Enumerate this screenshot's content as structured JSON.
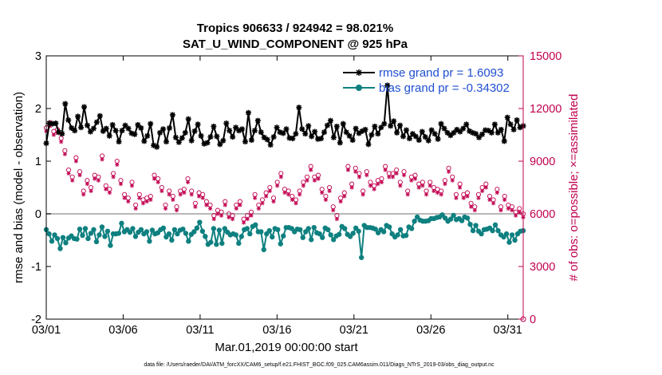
{
  "chart_data": {
    "type": "line",
    "title_line1": "Tropics 906633 / 924942 = 98.021%",
    "title_line2": "SAT_U_WIND_COMPONENT @ 925 hPa",
    "xlabel": "Mar.01,2019 00:00:00 start",
    "ylabel_left": "rmse and bias (model - observation)",
    "ylabel_right": "# of obs: o=possible; ×=assimilated",
    "x_range_days": [
      1,
      32
    ],
    "ylim_left": [
      -2,
      3
    ],
    "ylim_right": [
      0,
      15000
    ],
    "x_ticks": [
      {
        "day": 1,
        "label": "03/01"
      },
      {
        "day": 6,
        "label": "03/06"
      },
      {
        "day": 11,
        "label": "03/11"
      },
      {
        "day": 16,
        "label": "03/16"
      },
      {
        "day": 21,
        "label": "03/21"
      },
      {
        "day": 26,
        "label": "03/26"
      },
      {
        "day": 31,
        "label": "03/31"
      }
    ],
    "y_ticks_left": [
      "3",
      "2",
      "1",
      "0",
      "-1",
      "-2"
    ],
    "y_ticks_right": [
      "15000",
      "12000",
      "9000",
      "6000",
      "3000",
      "0"
    ],
    "zero_line": 0,
    "time_step_days": 0.25,
    "series": [
      {
        "name": "rmse",
        "legend": "rmse grand pr = 1.6093",
        "color": "#000000",
        "marker": "asterisk",
        "values": [
          1.34,
          1.72,
          1.71,
          1.72,
          1.55,
          1.52,
          2.09,
          1.78,
          1.63,
          1.58,
          1.85,
          1.64,
          2.03,
          1.68,
          1.56,
          1.62,
          1.74,
          1.86,
          1.57,
          1.62,
          1.48,
          1.69,
          1.58,
          1.37,
          1.58,
          1.68,
          1.62,
          1.53,
          1.51,
          1.69,
          1.63,
          1.38,
          1.48,
          1.71,
          1.3,
          1.27,
          1.54,
          1.61,
          1.37,
          1.63,
          1.88,
          1.45,
          1.36,
          1.44,
          1.54,
          1.8,
          1.39,
          1.57,
          1.7,
          1.48,
          1.33,
          1.35,
          1.46,
          1.66,
          1.47,
          1.32,
          1.39,
          1.72,
          1.58,
          1.46,
          1.64,
          1.58,
          1.61,
          1.37,
          1.92,
          1.4,
          1.58,
          1.77,
          1.55,
          1.45,
          1.41,
          1.31,
          1.46,
          1.64,
          1.55,
          1.53,
          1.61,
          1.44,
          1.43,
          1.52,
          2.02,
          1.61,
          1.52,
          1.67,
          1.47,
          1.56,
          1.42,
          1.43,
          1.55,
          1.68,
          1.77,
          1.45,
          1.66,
          1.35,
          1.71,
          1.55,
          1.48,
          1.4,
          1.62,
          1.53,
          1.57,
          1.6,
          1.32,
          1.5,
          1.66,
          1.52,
          1.64,
          1.71,
          2.44,
          1.67,
          1.76,
          1.54,
          1.68,
          1.47,
          1.59,
          1.43,
          1.52,
          1.47,
          1.4,
          1.56,
          1.46,
          1.39,
          1.59,
          1.52,
          1.42,
          1.71,
          1.62,
          1.54,
          1.49,
          1.54,
          1.6,
          1.56,
          1.62,
          1.7,
          1.57,
          1.54,
          1.52,
          1.45,
          1.51,
          1.59,
          1.58,
          1.54,
          1.7,
          1.54,
          1.6,
          1.38,
          1.83,
          1.7,
          1.6,
          1.78,
          1.64,
          1.67
        ]
      },
      {
        "name": "bias",
        "legend": "bias grand pr = -0.34302",
        "color": "#0f8080",
        "marker": "dot",
        "values": [
          -0.3,
          -0.38,
          -0.52,
          -0.4,
          -0.47,
          -0.66,
          -0.45,
          -0.55,
          -0.46,
          -0.42,
          -0.47,
          -0.48,
          -0.29,
          -0.41,
          -0.28,
          -0.47,
          -0.37,
          -0.3,
          -0.53,
          -0.4,
          -0.25,
          -0.43,
          -0.33,
          -0.6,
          -0.38,
          -0.38,
          -0.37,
          -0.18,
          -0.34,
          -0.3,
          -0.35,
          -0.28,
          -0.43,
          -0.35,
          -0.3,
          -0.38,
          -0.34,
          -0.52,
          -0.31,
          -0.38,
          -0.36,
          -0.3,
          -0.27,
          -0.44,
          -0.38,
          -0.5,
          -0.3,
          -0.38,
          -0.31,
          -0.29,
          -0.37,
          -0.52,
          -0.39,
          -0.34,
          -0.27,
          -0.16,
          -0.33,
          -0.43,
          -0.58,
          -0.54,
          -0.28,
          -0.58,
          -0.31,
          -0.56,
          -0.28,
          -0.35,
          -0.4,
          -0.38,
          -0.4,
          -0.56,
          -0.43,
          -0.3,
          -0.28,
          -0.38,
          -0.24,
          -0.21,
          -0.34,
          -0.34,
          -0.68,
          -0.38,
          -0.32,
          -0.44,
          -0.28,
          -0.3,
          -0.57,
          -0.42,
          -0.26,
          -0.26,
          -0.28,
          -0.34,
          -0.29,
          -0.3,
          -0.45,
          -0.34,
          -0.28,
          -0.49,
          -0.26,
          -0.36,
          -0.38,
          -0.45,
          -0.27,
          -0.3,
          -0.4,
          -0.49,
          -0.42,
          -0.39,
          -0.24,
          -0.28,
          -0.39,
          -0.43,
          -0.37,
          -0.27,
          -0.33,
          -0.83,
          -0.22,
          -0.26,
          -0.26,
          -0.27,
          -0.29,
          -0.36,
          -0.3,
          -0.34,
          -0.22,
          -0.25,
          -0.38,
          -0.44,
          -0.4,
          -0.3,
          -0.42,
          -0.41,
          -0.25,
          -0.28,
          -0.14,
          -0.06,
          -0.12,
          -0.14,
          -0.14,
          -0.13,
          -0.09,
          -0.09,
          -0.07,
          -0.06,
          -0.02,
          -0.08,
          -0.14,
          -0.1,
          -0.03,
          -0.11,
          -0.09,
          -0.13,
          -0.06,
          -0.08,
          -0.2,
          -0.32,
          -0.22,
          -0.33,
          -0.38,
          -0.3,
          -0.29,
          -0.27,
          -0.32,
          -0.21,
          -0.32,
          -0.4,
          -0.44,
          -0.38,
          -0.54,
          -0.4,
          -0.5,
          -0.38,
          -0.33,
          -0.32
        ],
        "values_note": "one value per 6-hour step from 03/01 to 04/01"
      },
      {
        "name": "obs_possible",
        "axis": "right",
        "color": "#c0004f",
        "marker": "circle",
        "values": [
          10900,
          11200,
          10700,
          10800,
          10300,
          9600,
          8500,
          8100,
          9200,
          8400,
          7300,
          7900,
          7500,
          8200,
          8100,
          9300,
          7600,
          7400,
          8300,
          9000,
          7900,
          7100,
          6900,
          7800,
          6500,
          7100,
          6800,
          6900,
          7000,
          8200,
          8000,
          7500,
          6500,
          7300,
          7000,
          6400,
          7300,
          7400,
          8000,
          7300,
          6600,
          7200,
          7100,
          6700,
          6500,
          5900,
          6200,
          6100,
          6700,
          6000,
          5900,
          6500,
          6700,
          5700,
          5900,
          6100,
          7100,
          6500,
          6800,
          7200,
          7500,
          6900,
          7800,
          8300,
          7400,
          7300,
          7000,
          6800,
          7300,
          7800,
          8100,
          8700,
          8100,
          8200,
          7400,
          7000,
          7500,
          6400,
          5900,
          6900,
          7200,
          8700,
          7700,
          8600,
          8300,
          7300,
          8400,
          7800,
          7600,
          7900,
          8000,
          8700,
          8300,
          8300,
          8500,
          7800,
          8400,
          7300,
          8100,
          8200,
          7700,
          7800,
          7300,
          7800,
          7500,
          7400,
          7300,
          7900,
          8600,
          8100,
          7100,
          7700,
          7100,
          7200,
          6600,
          6400,
          7100,
          7500,
          7700,
          7000,
          6800,
          7400,
          6400,
          7000,
          6500,
          6400,
          6100,
          6300,
          6000
        ],
        "values_note": "approximate; plotted every 6 hours"
      },
      {
        "name": "obs_assimilated",
        "axis": "right",
        "color": "#c0004f",
        "marker": "asterisk",
        "values": [
          10700,
          11000,
          10500,
          10600,
          10100,
          9400,
          8300,
          7900,
          9000,
          8200,
          7100,
          7700,
          7300,
          8000,
          7900,
          9100,
          7400,
          7200,
          8100,
          8800,
          7700,
          6900,
          6700,
          7600,
          6300,
          6900,
          6600,
          6700,
          6800,
          8000,
          7800,
          7300,
          6300,
          7100,
          6800,
          6200,
          7100,
          7200,
          7800,
          7100,
          6400,
          7000,
          6900,
          6500,
          6300,
          5700,
          6000,
          5900,
          6500,
          5800,
          5700,
          6300,
          6500,
          5500,
          5700,
          5900,
          6900,
          6300,
          6600,
          7000,
          7300,
          6700,
          7600,
          8100,
          7200,
          7100,
          6800,
          6600,
          7100,
          7600,
          7900,
          8500,
          7900,
          8000,
          7200,
          6800,
          7300,
          6200,
          5700,
          6700,
          7000,
          8500,
          7500,
          8400,
          8100,
          7100,
          8200,
          7600,
          7400,
          7700,
          7800,
          8500,
          8100,
          8100,
          8300,
          7600,
          8200,
          7100,
          7900,
          8000,
          7500,
          7600,
          7100,
          7600,
          7300,
          7200,
          7100,
          7700,
          8400,
          7900,
          6900,
          7500,
          6900,
          7000,
          6400,
          6200,
          6900,
          7300,
          7500,
          6800,
          6600,
          7200,
          6200,
          6800,
          6300,
          6200,
          5900,
          6100,
          5800
        ]
      }
    ]
  },
  "footer": {
    "data_file": "data file: /Users/raeder/DAI/ATM_forcXX/CAM6_setup/f.e21.FHIST_BGC.f09_025.CAM6assim.011/Diags_NTrS_2019-03/obs_diag_output.nc"
  },
  "colors": {
    "rmse": "#000000",
    "bias": "#0f8080",
    "obs": "#c0004f",
    "legend_text": "#1f4fd0"
  }
}
